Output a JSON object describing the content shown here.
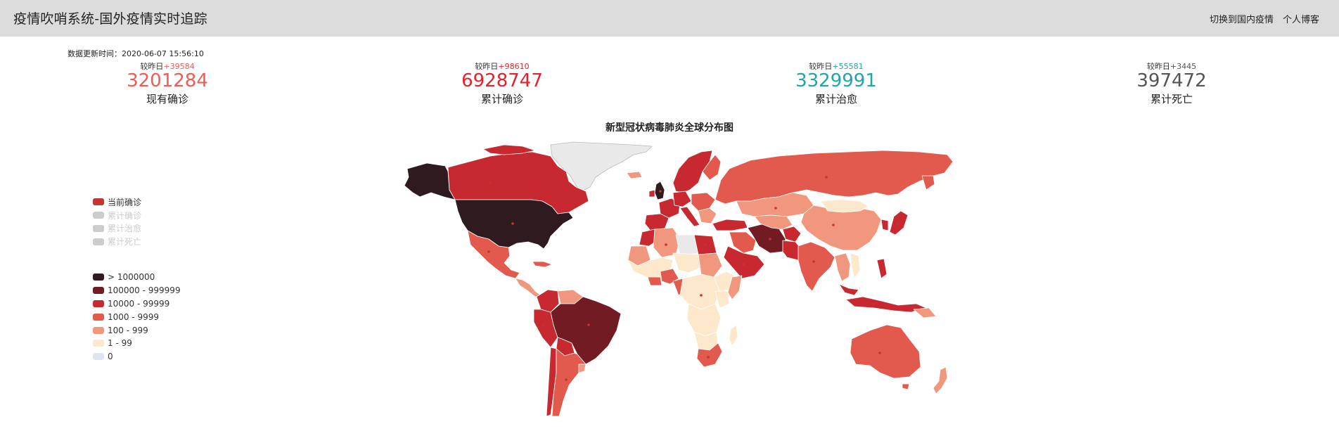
{
  "header": {
    "title": "疫情吹哨系统-国外疫情实时追踪",
    "nav": [
      "切换到国内疫情",
      "个人博客"
    ]
  },
  "update_time": "数据更新时间：2020-06-07 15:56:10",
  "stats": [
    {
      "delta_label": "较昨日",
      "delta": "+39584",
      "value": "3201284",
      "label": "现有确诊",
      "color": "#f25a53"
    },
    {
      "delta_label": "较昨日",
      "delta": "+98610",
      "value": "6928747",
      "label": "累计确诊",
      "color": "#e0242e"
    },
    {
      "delta_label": "较昨日",
      "delta": "+55581",
      "value": "3329991",
      "label": "累计治愈",
      "color": "#1fa6a6"
    },
    {
      "delta_label": "较昨日",
      "delta": "+3445",
      "value": "397472",
      "label": "累计死亡",
      "color": "#555555"
    }
  ],
  "map": {
    "title": "新型冠状病毒肺炎全球分布图",
    "series_legend": [
      {
        "label": "当前确诊",
        "active": true,
        "color": "#c23531"
      },
      {
        "label": "累计确诊",
        "active": false,
        "color": "#cccccc"
      },
      {
        "label": "累计治愈",
        "active": false,
        "color": "#cccccc"
      },
      {
        "label": "累计死亡",
        "active": false,
        "color": "#cccccc"
      }
    ],
    "range_legend": [
      {
        "label": "> 1000000",
        "color": "#2f1b1f"
      },
      {
        "label": "100000 - 999999",
        "color": "#731b23"
      },
      {
        "label": "10000 - 99999",
        "color": "#c8282f"
      },
      {
        "label": "1000 - 9999",
        "color": "#e25a4d"
      },
      {
        "label": "100 - 999",
        "color": "#f1977d"
      },
      {
        "label": "1 - 99",
        "color": "#fde8cc"
      },
      {
        "label": "0",
        "color": "#dfe5ee"
      }
    ]
  }
}
